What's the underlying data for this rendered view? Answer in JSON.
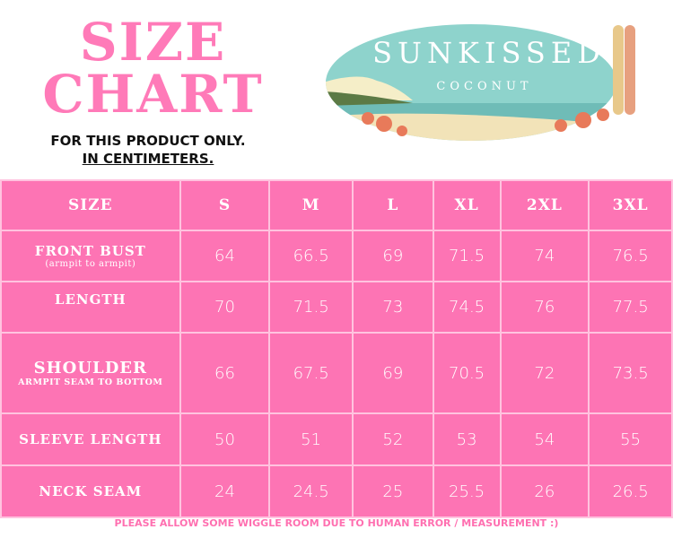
{
  "header": {
    "title_line1": "SIZE",
    "title_line2": "CHART",
    "subtitle_line1": "FOR THIS PRODUCT ONLY.",
    "subtitle_line2": "IN CENTIMETERS."
  },
  "logo": {
    "brand": "SUNKISSED",
    "tagline": "COCONUT"
  },
  "table": {
    "columns": [
      "SIZE",
      "S",
      "M",
      "L",
      "XL",
      "2XL",
      "3XL"
    ],
    "rows": [
      {
        "label": "FRONT BUST",
        "note": "(armpit to armpit)",
        "values": [
          "64",
          "66.5",
          "69",
          "71.5",
          "74",
          "76.5"
        ]
      },
      {
        "label": "LENGTH",
        "note": "",
        "values": [
          "70",
          "71.5",
          "73",
          "74.5",
          "76",
          "77.5"
        ]
      },
      {
        "label": "SHOULDER",
        "note": "ARMPIT SEAM TO BOTTOM",
        "values": [
          "66",
          "67.5",
          "69",
          "70.5",
          "72",
          "73.5"
        ]
      },
      {
        "label": "SLEEVE LENGTH",
        "note": "",
        "values": [
          "50",
          "51",
          "52",
          "53",
          "54",
          "55"
        ]
      },
      {
        "label": "NECK SEAM",
        "note": "",
        "values": [
          "24",
          "24.5",
          "25",
          "25.5",
          "26",
          "26.5"
        ]
      }
    ]
  },
  "footer": "PLEASE ALLOW SOME WIGGLE ROOM DUE TO HUMAN ERROR / MEASUREMENT :)",
  "colors": {
    "pink": "#fd74b4",
    "title_pink": "#ff7ab8",
    "border": "#ffc3df"
  }
}
